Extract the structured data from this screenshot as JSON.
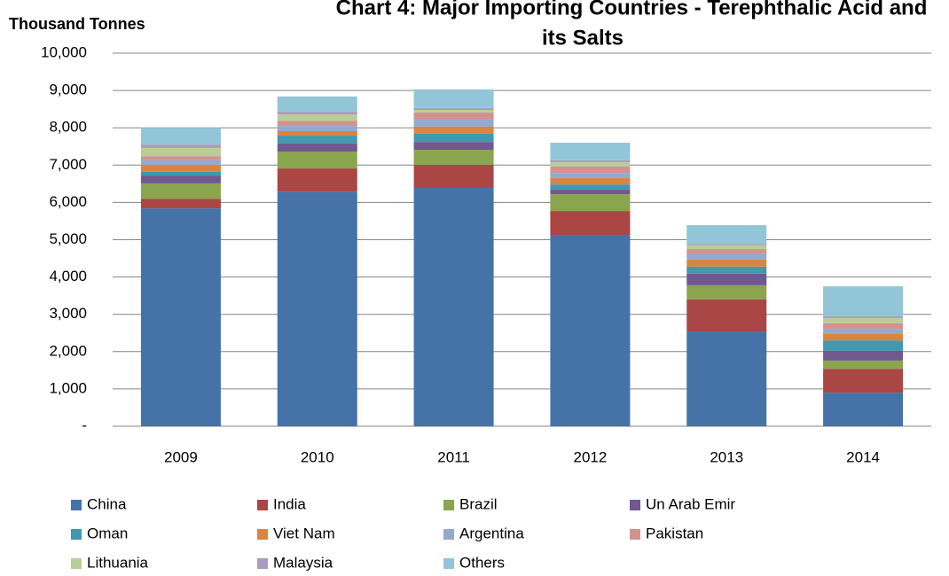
{
  "chart_data": {
    "type": "stacked_bar",
    "title": [
      "Chart 4: Major Importing Countries - Terephthalic Acid and",
      "its Salts"
    ],
    "y_axis_label": "Thousand Tonnes",
    "categories": [
      "2009",
      "2010",
      "2011",
      "2012",
      "2013",
      "2014"
    ],
    "series": [
      {
        "name": "China",
        "color": "#4572a7",
        "values": [
          5840,
          6290,
          6390,
          5130,
          2540,
          900
        ]
      },
      {
        "name": "India",
        "color": "#aa4643",
        "values": [
          260,
          620,
          620,
          640,
          860,
          640
        ]
      },
      {
        "name": "Brazil",
        "color": "#89a54e",
        "values": [
          410,
          450,
          400,
          450,
          380,
          220
        ]
      },
      {
        "name": "Un Arab Emir",
        "color": "#71588f",
        "values": [
          210,
          220,
          210,
          120,
          310,
          260
        ]
      },
      {
        "name": "Oman",
        "color": "#4198af",
        "values": [
          100,
          210,
          220,
          140,
          190,
          280
        ]
      },
      {
        "name": "Viet Nam",
        "color": "#db843d",
        "values": [
          190,
          120,
          190,
          170,
          190,
          170
        ]
      },
      {
        "name": "Argentina",
        "color": "#93a9cf",
        "values": [
          120,
          140,
          190,
          140,
          140,
          140
        ]
      },
      {
        "name": "Pakistan",
        "color": "#d19392",
        "values": [
          110,
          140,
          190,
          170,
          140,
          150
        ]
      },
      {
        "name": "Lithuania",
        "color": "#b9cd96",
        "values": [
          220,
          170,
          70,
          120,
          100,
          140
        ]
      },
      {
        "name": "Malaysia",
        "color": "#a99bbd",
        "values": [
          90,
          70,
          50,
          50,
          40,
          50
        ]
      },
      {
        "name": "Others",
        "color": "#92c5d8",
        "values": [
          450,
          410,
          500,
          470,
          500,
          800
        ]
      }
    ],
    "ylim": [
      0,
      10000
    ],
    "yticks": [
      {
        "value": 0,
        "label": "-"
      },
      {
        "value": 1000,
        "label": "1,000"
      },
      {
        "value": 2000,
        "label": "2,000"
      },
      {
        "value": 3000,
        "label": "3,000"
      },
      {
        "value": 4000,
        "label": "4,000"
      },
      {
        "value": 5000,
        "label": "5,000"
      },
      {
        "value": 6000,
        "label": "6,000"
      },
      {
        "value": 7000,
        "label": "7,000"
      },
      {
        "value": 8000,
        "label": "8,000"
      },
      {
        "value": 9000,
        "label": "9,000"
      },
      {
        "value": 10000,
        "label": "10,000"
      }
    ],
    "grid": true,
    "legend": "bottom"
  }
}
